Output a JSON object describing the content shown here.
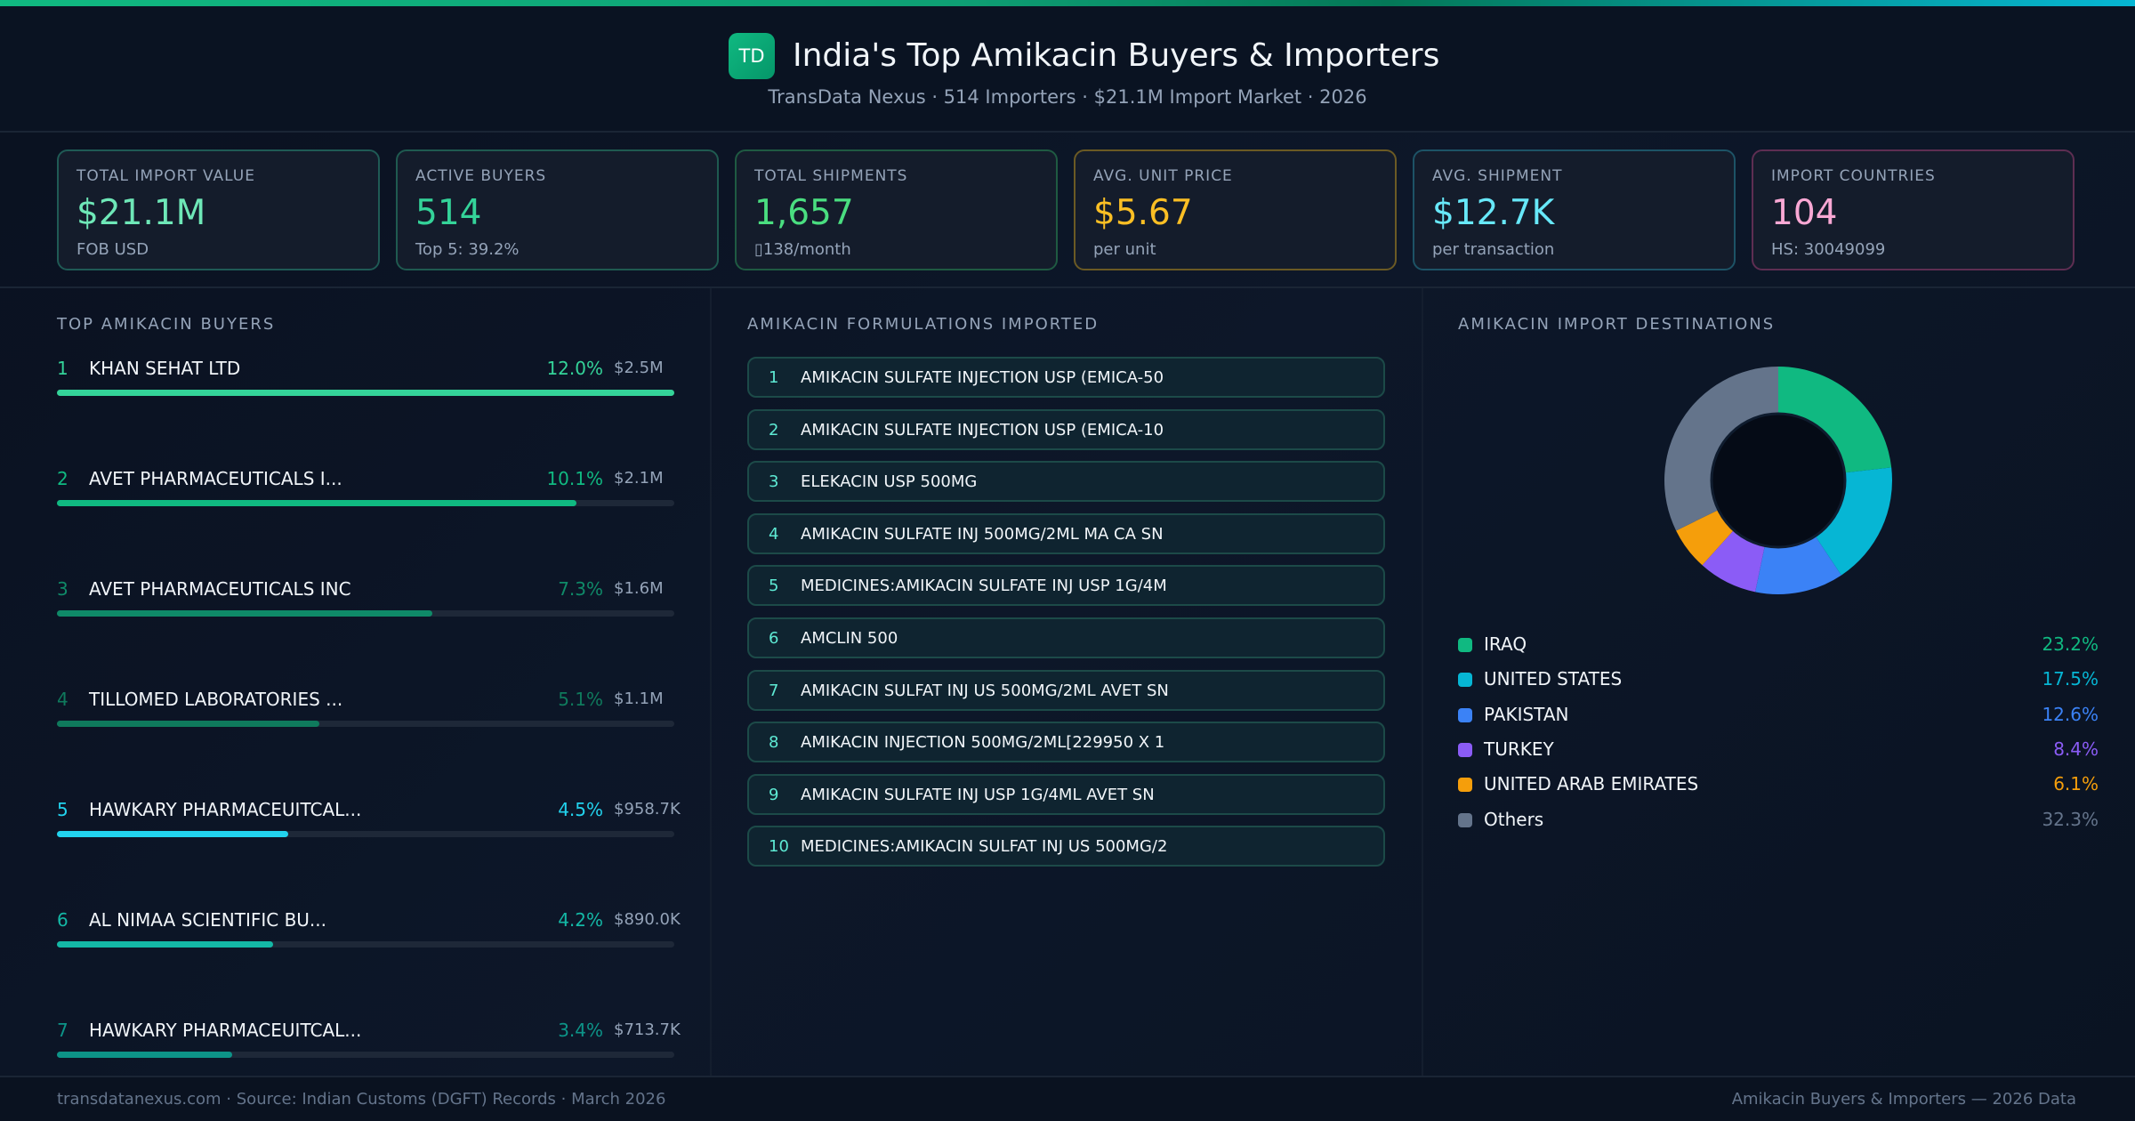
{
  "header": {
    "logo_text": "TD",
    "title": "India's Top Amikacin Buyers & Importers",
    "subtitle": "TransData Nexus · 514 Importers · $21.1M Import Market · 2026"
  },
  "kpis": [
    {
      "label": "TOTAL IMPORT VALUE",
      "value": "$21.1M",
      "sub": "FOB USD",
      "color": "#6ee7b7",
      "border": "#1f5a55"
    },
    {
      "label": "ACTIVE BUYERS",
      "value": "514",
      "sub": "Top 5: 39.2%",
      "color": "#34d399",
      "border": "#1f5a50"
    },
    {
      "label": "TOTAL SHIPMENTS",
      "value": "1,657",
      "sub": "▯138/month",
      "color": "#4ade80",
      "border": "#1f5a42"
    },
    {
      "label": "AVG. UNIT PRICE",
      "value": "$5.67",
      "sub": "per unit",
      "color": "#fbbf24",
      "border": "#6b5a24"
    },
    {
      "label": "AVG. SHIPMENT",
      "value": "$12.7K",
      "sub": "per transaction",
      "color": "#67e8f9",
      "border": "#1d5366"
    },
    {
      "label": "IMPORT COUNTRIES",
      "value": "104",
      "sub": "HS: 30049099",
      "color": "#f9a8d4",
      "border": "#5e2e52"
    }
  ],
  "buyers": {
    "title": "TOP AMIKACIN BUYERS",
    "items": [
      {
        "rank": "1",
        "name": "KHAN SEHAT LTD",
        "pct": "12.0%",
        "value": "$2.5M",
        "share": 12.0,
        "color": "#34d399"
      },
      {
        "rank": "2",
        "name": "AVET PHARMACEUTICALS I...",
        "pct": "10.1%",
        "value": "$2.1M",
        "share": 10.1,
        "color": "#10b981"
      },
      {
        "rank": "3",
        "name": "AVET PHARMACEUTICALS INC",
        "pct": "7.3%",
        "value": "$1.6M",
        "share": 7.3,
        "color": "#0f8a68"
      },
      {
        "rank": "4",
        "name": "TILLOMED LABORATORIES ...",
        "pct": "5.1%",
        "value": "$1.1M",
        "share": 5.1,
        "color": "#0f7a5c"
      },
      {
        "rank": "5",
        "name": "HAWKARY PHARMACEUITCAL...",
        "pct": "4.5%",
        "value": "$958.7K",
        "share": 4.5,
        "color": "#22d3ee"
      },
      {
        "rank": "6",
        "name": "AL NIMAA SCIENTIFIC BU...",
        "pct": "4.2%",
        "value": "$890.0K",
        "share": 4.2,
        "color": "#14b8a6"
      },
      {
        "rank": "7",
        "name": "HAWKARY PHARMACEUITCAL...",
        "pct": "3.4%",
        "value": "$713.7K",
        "share": 3.4,
        "color": "#0d9488"
      }
    ]
  },
  "formulations": {
    "title": "AMIKACIN FORMULATIONS IMPORTED",
    "items": [
      {
        "n": "1",
        "text": "AMIKACIN SULFATE INJECTION USP (EMICA-50"
      },
      {
        "n": "2",
        "text": "AMIKACIN SULFATE INJECTION USP (EMICA-10"
      },
      {
        "n": "3",
        "text": "ELEKACIN USP 500MG"
      },
      {
        "n": "4",
        "text": "AMIKACIN SULFATE INJ 500MG/2ML MA CA SN"
      },
      {
        "n": "5",
        "text": "MEDICINES:AMIKACIN SULFATE INJ USP 1G/4M"
      },
      {
        "n": "6",
        "text": "AMCLIN 500"
      },
      {
        "n": "7",
        "text": "AMIKACIN SULFAT INJ US 500MG/2ML AVET SN"
      },
      {
        "n": "8",
        "text": "AMIKACIN INJECTION 500MG/2ML[229950 X 1"
      },
      {
        "n": "9",
        "text": "AMIKACIN SULFATE INJ USP 1G/4ML AVET SN"
      },
      {
        "n": "10",
        "text": "MEDICINES:AMIKACIN SULFAT INJ US 500MG/2"
      }
    ]
  },
  "destinations": {
    "title": "AMIKACIN IMPORT DESTINATIONS",
    "items": [
      {
        "name": "IRAQ",
        "pct": "23.2%",
        "value": 23.2,
        "color": "#10b981"
      },
      {
        "name": "UNITED STATES",
        "pct": "17.5%",
        "value": 17.5,
        "color": "#06b6d4"
      },
      {
        "name": "PAKISTAN",
        "pct": "12.6%",
        "value": 12.6,
        "color": "#3b82f6"
      },
      {
        "name": "TURKEY",
        "pct": "8.4%",
        "value": 8.4,
        "color": "#8b5cf6"
      },
      {
        "name": "UNITED ARAB EMIRATES",
        "pct": "6.1%",
        "value": 6.1,
        "color": "#f59e0b"
      },
      {
        "name": "Others",
        "pct": "32.3%",
        "value": 32.3,
        "color": "#64748b"
      }
    ]
  },
  "footer": {
    "left": "transdatanexus.com · Source: Indian Customs (DGFT) Records · March 2026",
    "right": "Amikacin Buyers & Importers — 2026 Data"
  }
}
